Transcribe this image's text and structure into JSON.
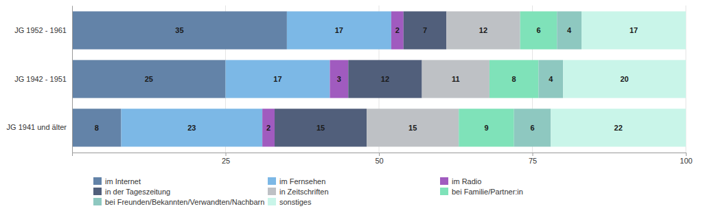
{
  "chart_data": {
    "type": "bar",
    "orientation": "horizontal",
    "stacked": true,
    "data_labels": true,
    "grid": true,
    "legend": "bottom",
    "categories": [
      "JG 1952 - 1961",
      "JG 1942 - 1951",
      "JG 1941 und älter"
    ],
    "xlim": [
      0,
      100
    ],
    "xticks": [
      25,
      50,
      75,
      100
    ],
    "series": [
      {
        "name": "im Internet",
        "color": "#6383a8",
        "values": [
          35,
          25,
          8
        ]
      },
      {
        "name": "im Fernsehen",
        "color": "#7cb8e6",
        "values": [
          17,
          17,
          23
        ]
      },
      {
        "name": "im Radio",
        "color": "#a05bbf",
        "values": [
          2,
          3,
          2
        ]
      },
      {
        "name": "in der Tageszeitung",
        "color": "#515f7b",
        "values": [
          7,
          12,
          15
        ]
      },
      {
        "name": "in Zeitschriften",
        "color": "#bec1c5",
        "values": [
          12,
          11,
          15
        ]
      },
      {
        "name": "bei Familie/Partner:in",
        "color": "#7fe2b9",
        "values": [
          6,
          8,
          9
        ]
      },
      {
        "name": "bei Freunden/Bekannten/Verwandten/Nachbarn",
        "color": "#8ec8c0",
        "values": [
          4,
          4,
          6
        ]
      },
      {
        "name": "sonstiges",
        "color": "#c9f5e9",
        "values": [
          17,
          20,
          22
        ]
      }
    ]
  }
}
